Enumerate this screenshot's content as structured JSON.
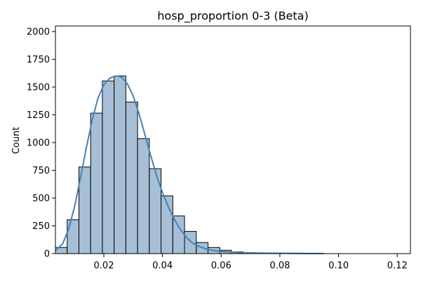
{
  "chart_data": {
    "type": "histogram",
    "title": "hosp_proportion 0-3 (Beta)",
    "xlabel": "",
    "ylabel": "Count",
    "xlim": [
      0.0035,
      0.1245
    ],
    "ylim": [
      0,
      2050
    ],
    "x_ticks": [
      {
        "value": 0.02,
        "label": "0.02"
      },
      {
        "value": 0.04,
        "label": "0.04"
      },
      {
        "value": 0.06,
        "label": "0.06"
      },
      {
        "value": 0.08,
        "label": "0.08"
      },
      {
        "value": 0.1,
        "label": "0.10"
      },
      {
        "value": 0.12,
        "label": "0.12"
      }
    ],
    "y_ticks": [
      {
        "value": 0,
        "label": "0"
      },
      {
        "value": 250,
        "label": "250"
      },
      {
        "value": 500,
        "label": "500"
      },
      {
        "value": 750,
        "label": "750"
      },
      {
        "value": 1000,
        "label": "1000"
      },
      {
        "value": 1250,
        "label": "1250"
      },
      {
        "value": 1500,
        "label": "1500"
      },
      {
        "value": 1750,
        "label": "1750"
      },
      {
        "value": 2000,
        "label": "2000"
      }
    ],
    "bins": [
      {
        "x0": 0.0035,
        "x1": 0.0075,
        "count": 55
      },
      {
        "x0": 0.0075,
        "x1": 0.0115,
        "count": 305
      },
      {
        "x0": 0.0115,
        "x1": 0.0155,
        "count": 780
      },
      {
        "x0": 0.0155,
        "x1": 0.0195,
        "count": 1265
      },
      {
        "x0": 0.0195,
        "x1": 0.0235,
        "count": 1555
      },
      {
        "x0": 0.0235,
        "x1": 0.0275,
        "count": 1600
      },
      {
        "x0": 0.0275,
        "x1": 0.0315,
        "count": 1365
      },
      {
        "x0": 0.0315,
        "x1": 0.0355,
        "count": 1035
      },
      {
        "x0": 0.0355,
        "x1": 0.0395,
        "count": 765
      },
      {
        "x0": 0.0395,
        "x1": 0.0435,
        "count": 520
      },
      {
        "x0": 0.0435,
        "x1": 0.0475,
        "count": 340
      },
      {
        "x0": 0.0475,
        "x1": 0.0515,
        "count": 200
      },
      {
        "x0": 0.0515,
        "x1": 0.0555,
        "count": 100
      },
      {
        "x0": 0.0555,
        "x1": 0.0595,
        "count": 55
      },
      {
        "x0": 0.0595,
        "x1": 0.0635,
        "count": 30
      },
      {
        "x0": 0.0635,
        "x1": 0.0675,
        "count": 15
      },
      {
        "x0": 0.0675,
        "x1": 0.0715,
        "count": 8
      },
      {
        "x0": 0.0715,
        "x1": 0.0755,
        "count": 5
      },
      {
        "x0": 0.0755,
        "x1": 0.0795,
        "count": 3
      },
      {
        "x0": 0.0795,
        "x1": 0.0835,
        "count": 2
      },
      {
        "x0": 0.0835,
        "x1": 0.0875,
        "count": 2
      },
      {
        "x0": 0.0875,
        "x1": 0.0915,
        "count": 1
      }
    ],
    "kde": [
      [
        0.0035,
        25
      ],
      [
        0.006,
        90
      ],
      [
        0.008,
        220
      ],
      [
        0.01,
        420
      ],
      [
        0.012,
        680
      ],
      [
        0.014,
        950
      ],
      [
        0.016,
        1200
      ],
      [
        0.018,
        1400
      ],
      [
        0.02,
        1520
      ],
      [
        0.022,
        1580
      ],
      [
        0.024,
        1600
      ],
      [
        0.026,
        1590
      ],
      [
        0.028,
        1530
      ],
      [
        0.03,
        1420
      ],
      [
        0.032,
        1260
      ],
      [
        0.034,
        1070
      ],
      [
        0.036,
        880
      ],
      [
        0.038,
        700
      ],
      [
        0.04,
        550
      ],
      [
        0.042,
        420
      ],
      [
        0.044,
        310
      ],
      [
        0.046,
        220
      ],
      [
        0.048,
        150
      ],
      [
        0.05,
        100
      ],
      [
        0.052,
        70
      ],
      [
        0.055,
        40
      ],
      [
        0.058,
        25
      ],
      [
        0.062,
        15
      ],
      [
        0.066,
        9
      ],
      [
        0.07,
        6
      ],
      [
        0.075,
        4
      ],
      [
        0.08,
        3
      ],
      [
        0.085,
        2
      ],
      [
        0.09,
        1
      ],
      [
        0.095,
        0.5
      ]
    ],
    "grid": false,
    "legend": "none",
    "colors": {
      "bar_fill": "#a6bfd6",
      "bar_edge": "#000000",
      "kde_line": "#4682b4",
      "axes": "#000000",
      "background": "#ffffff"
    }
  }
}
